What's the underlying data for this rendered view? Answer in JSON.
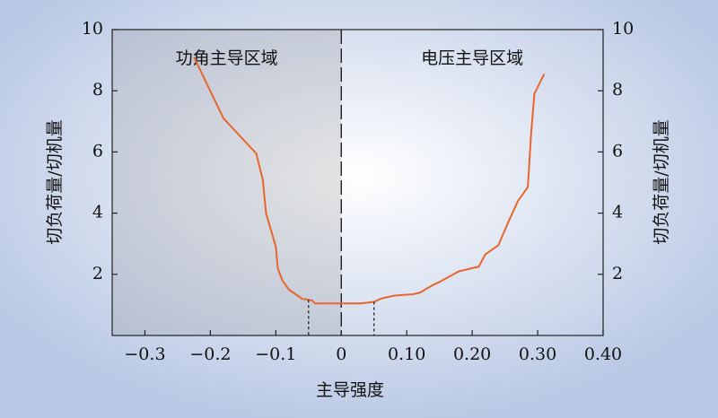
{
  "chart_data": {
    "type": "line",
    "x_label": "主导强度",
    "y_label": "切负荷量/切机量",
    "y2_label": "切负荷量/切机量",
    "regions": [
      {
        "label": "功角主导区域",
        "x": [
          -0.35,
          0
        ]
      },
      {
        "label": "电压主导区域",
        "x": [
          0,
          0.4
        ]
      }
    ],
    "boundary_x": 0,
    "marker_x": [
      -0.05,
      0.05
    ],
    "x": [
      -0.225,
      -0.18,
      -0.13,
      -0.12,
      -0.115,
      -0.1,
      -0.097,
      -0.09,
      -0.08,
      -0.06,
      -0.045,
      -0.04,
      0,
      0.03,
      0.05,
      0.06,
      0.08,
      0.11,
      0.12,
      0.14,
      0.15,
      0.18,
      0.21,
      0.22,
      0.24,
      0.255,
      0.27,
      0.285,
      0.29,
      0.295,
      0.31
    ],
    "series": [
      {
        "color": "#e8652e",
        "values": [
          9.1,
          7.1,
          5.95,
          5.1,
          4.0,
          2.9,
          2.2,
          1.8,
          1.5,
          1.2,
          1.15,
          1.05,
          1.05,
          1.05,
          1.1,
          1.2,
          1.3,
          1.35,
          1.4,
          1.65,
          1.75,
          2.1,
          2.25,
          2.65,
          2.95,
          3.7,
          4.4,
          4.85,
          6.6,
          7.9,
          8.55
        ]
      }
    ],
    "xlim": [
      -0.35,
      0.4
    ],
    "xticks": [
      {
        "value": -0.3,
        "label": "−0.3"
      },
      {
        "value": -0.2,
        "label": "−0.2"
      },
      {
        "value": -0.1,
        "label": "−0.1"
      },
      0,
      {
        "value": 0.1,
        "label": "0.10"
      },
      {
        "value": 0.2,
        "label": "0.20"
      },
      {
        "value": 0.3,
        "label": "0.30"
      },
      {
        "value": 0.4,
        "label": "0.40"
      }
    ],
    "ylim": [
      0,
      10
    ],
    "yticks": [
      2,
      4,
      6,
      8,
      10
    ],
    "y2lim": [
      0,
      10
    ],
    "y2ticks": [
      2,
      4,
      6,
      8,
      10
    ]
  }
}
